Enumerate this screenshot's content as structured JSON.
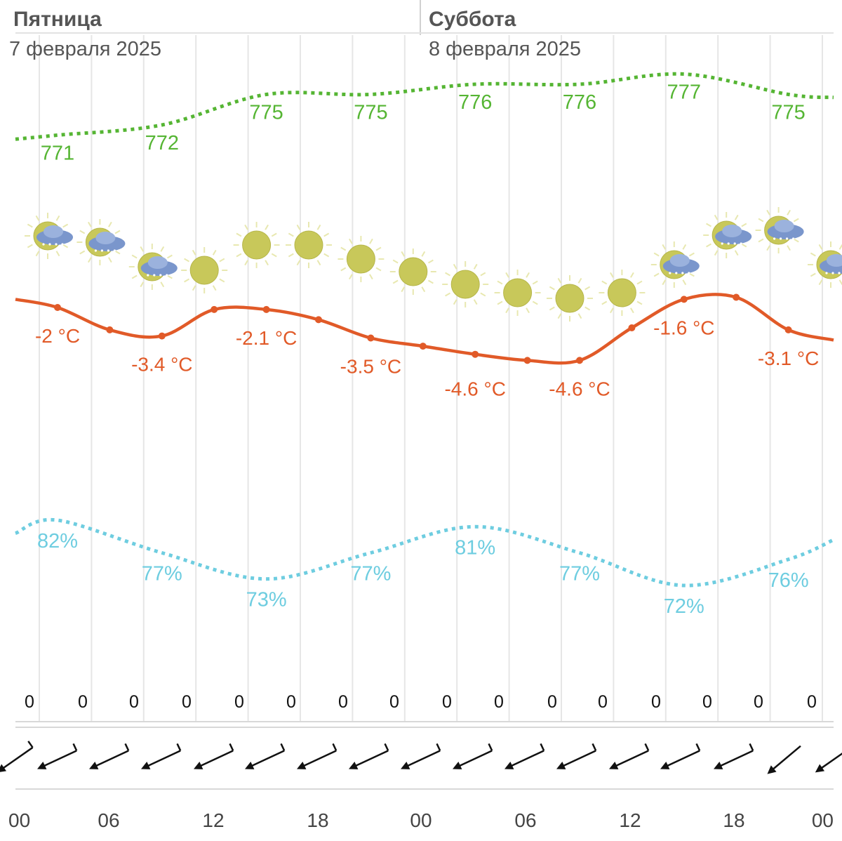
{
  "days": [
    {
      "name": "Пятница",
      "date": "7 февраля 2025"
    },
    {
      "name": "Суббота",
      "date": "8 февраля 2025"
    }
  ],
  "chart_data": {
    "type": "line",
    "title": "",
    "x_time_labels": [
      "00",
      "06",
      "12",
      "18",
      "00",
      "06",
      "12",
      "18",
      "00"
    ],
    "x_points": [
      "03",
      "06",
      "09",
      "12",
      "15",
      "18",
      "21",
      "00",
      "03",
      "06",
      "09",
      "12",
      "15",
      "18",
      "21"
    ],
    "series": [
      {
        "name": "pressure",
        "unit": "мм рт. ст.",
        "color": "#55b533",
        "values": [
          771,
          772,
          775,
          775,
          776,
          776,
          777,
          775
        ],
        "label_text": [
          "771",
          "772",
          "775",
          "775",
          "776",
          "776",
          "777",
          "775"
        ]
      },
      {
        "name": "temperature",
        "unit": "°C",
        "color": "#e15a28",
        "values": [
          -2,
          -3.4,
          -2.1,
          -3.5,
          -4.6,
          -4.6,
          -1.6,
          -3.1
        ],
        "label_text": [
          "-2 °C",
          "-3.4 °C",
          "-2.1 °C",
          "-3.5 °C",
          "-4.6 °C",
          "-4.6 °C",
          "-1.6 °C",
          "-3.1 °C"
        ]
      },
      {
        "name": "humidity",
        "unit": "%",
        "color": "#6ecde0",
        "values": [
          82,
          77,
          73,
          77,
          81,
          77,
          72,
          76
        ],
        "label_text": [
          "82%",
          "77%",
          "73%",
          "77%",
          "81%",
          "77%",
          "72%",
          "76%"
        ]
      }
    ],
    "precipitation": [
      "0",
      "0",
      "0",
      "0",
      "0",
      "0",
      "0",
      "0",
      "0",
      "0",
      "0",
      "0",
      "0",
      "0",
      "0",
      "0"
    ],
    "weather_icons": [
      "cloudy-snow-icon",
      "cloudy-snow-icon",
      "cloudy-snow-icon",
      "sun-icon",
      "sun-icon",
      "sun-icon",
      "sun-icon",
      "sun-icon",
      "sun-icon",
      "sun-icon",
      "sun-icon",
      "sun-icon",
      "cloudy-snow-icon",
      "cloudy-snow-icon",
      "cloudy-snow-icon",
      "cloudy-snow-icon",
      "cloudy-snow-icon"
    ],
    "wind_direction": "северо-восточный",
    "colors": {
      "pressure": "#55b533",
      "temperature": "#e15a28",
      "humidity": "#6ecde0",
      "grid": "#e6e6e6",
      "sun": "#c8c85a",
      "cloud": "#7a96cc"
    }
  }
}
